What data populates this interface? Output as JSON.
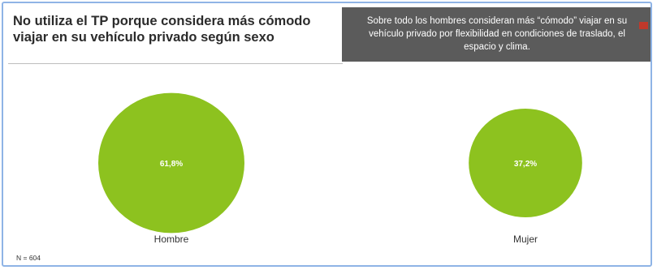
{
  "title": "No utiliza el TP porque considera más cómodo viajar en su vehículo privado según sexo",
  "callout": "Sobre todo los hombres consideran más “cómodo” viajar en su vehículo privado por flexibilidad en condiciones de traslado, el espacio y clima.",
  "note": "N = 604",
  "colors": {
    "bubble": "#8dc21f",
    "callout_bg": "#5b5b5b",
    "flag": "#c0392b",
    "border": "#8fb4e6"
  },
  "chart_data": {
    "type": "bubble",
    "categories": [
      "Hombre",
      "Mujer"
    ],
    "values": [
      61.8,
      37.2
    ],
    "value_labels": [
      "61,8%",
      "37,2%"
    ],
    "unit": "%"
  }
}
